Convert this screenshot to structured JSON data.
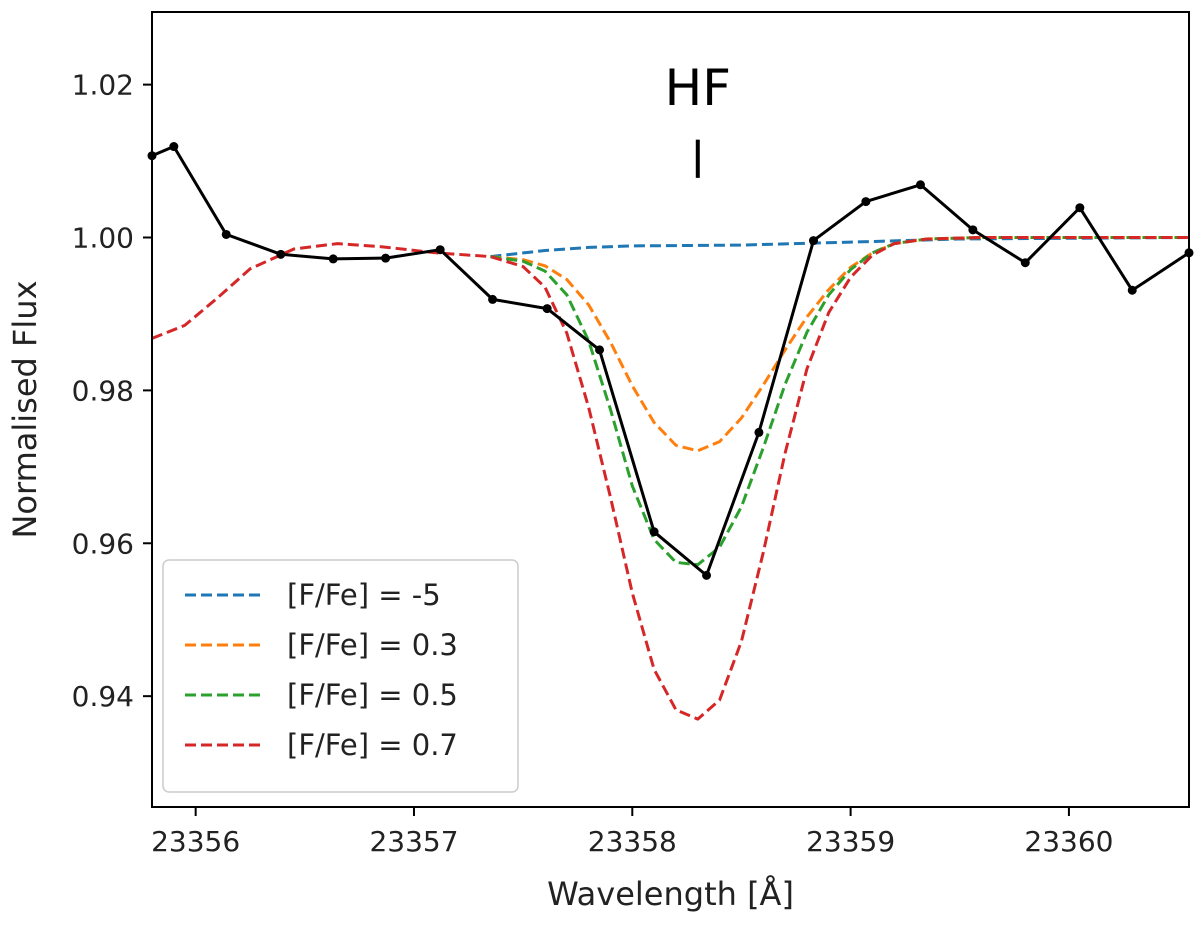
{
  "chart_data": {
    "type": "line",
    "title": "",
    "xlabel": "Wavelength [Å]",
    "ylabel": "Normalised Flux",
    "xlim": [
      23355.8,
      23360.55
    ],
    "ylim": [
      0.9255,
      1.0295
    ],
    "x_ticks": [
      23356,
      23357,
      23358,
      23359,
      23360
    ],
    "y_ticks": [
      0.94,
      0.96,
      0.98,
      1.0,
      1.02
    ],
    "x_tick_labels": [
      "23356",
      "23357",
      "23358",
      "23359",
      "23360"
    ],
    "y_tick_labels": [
      "0.94",
      "0.96",
      "0.98",
      "1.00",
      "1.02"
    ],
    "grid": false,
    "legend_position": "lower-left",
    "annotation": {
      "text": "HF",
      "x": 23358.3,
      "tick_y": [
        1.0078,
        1.0128
      ]
    },
    "observed": {
      "color": "#000000",
      "x": [
        23355.8,
        23355.9,
        23356.14,
        23356.39,
        23356.63,
        23356.87,
        23357.12,
        23357.36,
        23357.61,
        23357.85,
        23358.1,
        23358.34,
        23358.58,
        23358.83,
        23359.07,
        23359.32,
        23359.56,
        23359.8,
        23360.05,
        23360.29,
        23360.55
      ],
      "y": [
        1.0107,
        1.0119,
        1.0004,
        0.9978,
        0.9972,
        0.9973,
        0.9984,
        0.9919,
        0.9907,
        0.9853,
        0.9615,
        0.9558,
        0.9745,
        0.9996,
        1.0047,
        1.0069,
        1.001,
        0.9967,
        1.0039,
        0.9931,
        0.998
      ]
    },
    "series": [
      {
        "name": "[F/Fe] = -5",
        "label": "[F/Fe] = -5",
        "color": "#1f77b4",
        "x": [
          23357.35,
          23357.6,
          23357.8,
          23358.0,
          23358.5,
          23359.0,
          23359.5,
          23360.55
        ],
        "y": [
          0.9975,
          0.9983,
          0.9987,
          0.9989,
          0.999,
          0.9994,
          0.9998,
          1.0
        ]
      },
      {
        "name": "[F/Fe] = 0.3",
        "label": "[F/Fe] = 0.3",
        "color": "#ff7f0e",
        "x": [
          23357.35,
          23357.5,
          23357.6,
          23357.7,
          23357.8,
          23357.9,
          23358.0,
          23358.1,
          23358.2,
          23358.3,
          23358.4,
          23358.5,
          23358.6,
          23358.7,
          23358.8,
          23358.9,
          23359.0,
          23359.1,
          23359.2,
          23359.35,
          23359.6,
          23360.55
        ],
        "y": [
          0.9975,
          0.9971,
          0.9963,
          0.9945,
          0.9912,
          0.9863,
          0.9806,
          0.9758,
          0.9728,
          0.9721,
          0.9733,
          0.9764,
          0.9807,
          0.9853,
          0.9896,
          0.9932,
          0.9961,
          0.998,
          0.9992,
          0.9998,
          1.0,
          1.0
        ]
      },
      {
        "name": "[F/Fe] = 0.5",
        "label": "[F/Fe] = 0.5",
        "color": "#2ca02c",
        "x": [
          23357.35,
          23357.5,
          23357.6,
          23357.7,
          23357.8,
          23357.9,
          23358.0,
          23358.1,
          23358.2,
          23358.3,
          23358.4,
          23358.5,
          23358.6,
          23358.7,
          23358.8,
          23358.9,
          23359.0,
          23359.1,
          23359.2,
          23359.35,
          23359.6,
          23360.55
        ],
        "y": [
          0.9975,
          0.9969,
          0.9956,
          0.9925,
          0.9865,
          0.9775,
          0.9675,
          0.9605,
          0.9575,
          0.9572,
          0.9595,
          0.9648,
          0.9725,
          0.9808,
          0.9876,
          0.9925,
          0.9958,
          0.998,
          0.9992,
          0.9998,
          1.0,
          1.0
        ]
      },
      {
        "name": "[F/Fe] = 0.7",
        "label": "[F/Fe] = 0.7",
        "color": "#d62728",
        "x": [
          23355.8,
          23355.95,
          23356.1,
          23356.25,
          23356.45,
          23356.65,
          23356.85,
          23357.1,
          23357.35,
          23357.5,
          23357.6,
          23357.7,
          23357.8,
          23357.9,
          23358.0,
          23358.1,
          23358.2,
          23358.3,
          23358.4,
          23358.5,
          23358.6,
          23358.7,
          23358.8,
          23358.9,
          23359.0,
          23359.1,
          23359.2,
          23359.35,
          23359.6,
          23360.55
        ],
        "y": [
          0.9868,
          0.9885,
          0.9921,
          0.9959,
          0.9985,
          0.9992,
          0.9988,
          0.998,
          0.9975,
          0.9962,
          0.9935,
          0.9875,
          0.9778,
          0.966,
          0.9535,
          0.9435,
          0.9382,
          0.937,
          0.9395,
          0.9472,
          0.9588,
          0.9718,
          0.9828,
          0.9902,
          0.9948,
          0.9977,
          0.9992,
          0.9998,
          1.0,
          1.0
        ]
      }
    ]
  }
}
